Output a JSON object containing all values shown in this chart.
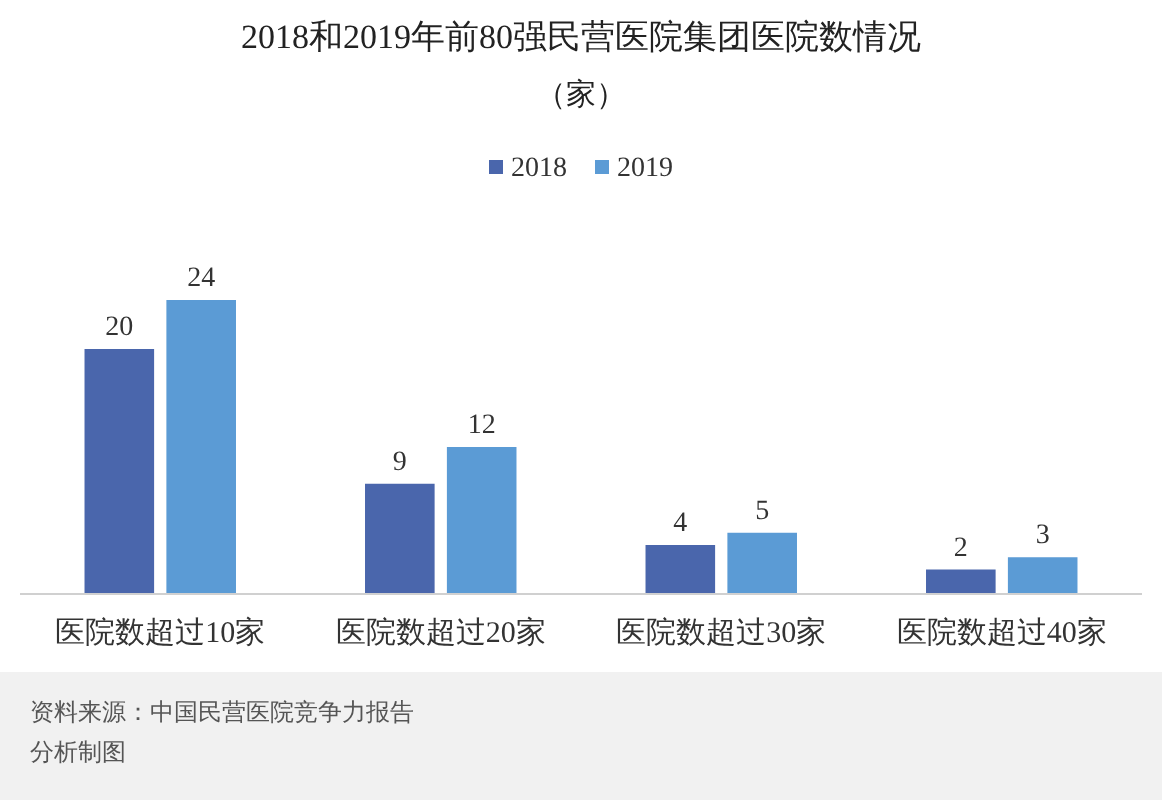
{
  "chart_data": {
    "type": "bar",
    "title": "2018和2019年前80强民营医院集团医院数情况",
    "subtitle": "（家）",
    "categories": [
      "医院数超过10家",
      "医院数超过20家",
      "医院数超过30家",
      "医院数超过40家"
    ],
    "series": [
      {
        "name": "2018",
        "color": "#4a66ac",
        "values": [
          20,
          9,
          4,
          2
        ]
      },
      {
        "name": "2019",
        "color": "#5b9bd5",
        "values": [
          24,
          12,
          5,
          3
        ]
      }
    ],
    "data_labels": true,
    "legend": "top",
    "annotations": [
      "资料来源：中国民营医院竞争力报告",
      "分析制图"
    ]
  }
}
